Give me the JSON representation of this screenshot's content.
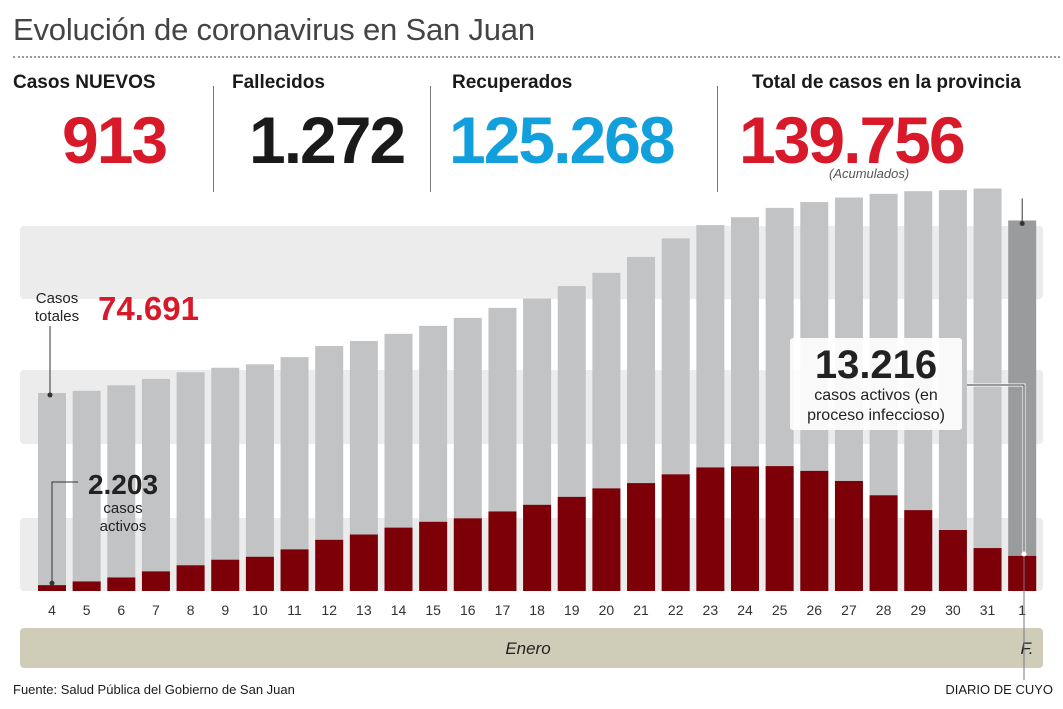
{
  "title": "Evolución de coronavirus en San Juan",
  "stats": [
    {
      "label": "Casos NUEVOS",
      "value": "913",
      "color": "#d7192a"
    },
    {
      "label": "Fallecidos",
      "value": "1.272",
      "color": "#1a1a1a"
    },
    {
      "label": "Recuperados",
      "value": "125.268",
      "color": "#12a0dc"
    },
    {
      "label": "Total de casos en la provincia",
      "value": "139.756",
      "color": "#d7192a"
    }
  ],
  "total_note": "(Acumulados)",
  "annotations": {
    "total_start_label_1": "Casos",
    "total_start_label_2": "totales",
    "total_start_value": "74.691",
    "active_start_value": "2.203",
    "active_start_label_1": "casos",
    "active_start_label_2": "activos",
    "active_end_value": "13.216",
    "active_end_label_1": "casos activos (en",
    "active_end_label_2": "proceso infeccioso)"
  },
  "chart_data": {
    "type": "bar",
    "categories": [
      "4",
      "5",
      "6",
      "7",
      "8",
      "9",
      "10",
      "11",
      "12",
      "13",
      "14",
      "15",
      "16",
      "17",
      "18",
      "19",
      "20",
      "21",
      "22",
      "23",
      "24",
      "25",
      "26",
      "27",
      "28",
      "29",
      "30",
      "31",
      "1"
    ],
    "series": [
      {
        "name": "Casos totales",
        "values": [
          74691,
          75500,
          77600,
          80000,
          82500,
          84200,
          85500,
          88200,
          92400,
          94300,
          97000,
          100000,
          103000,
          106800,
          110300,
          115000,
          120000,
          126000,
          133000,
          138000,
          141000,
          144500,
          146700,
          148400,
          149800,
          150800,
          151200,
          151800,
          139756
        ],
        "color": "#c2c3c5",
        "last_color": "#9a9b9d"
      },
      {
        "name": "casos activos",
        "values": [
          2203,
          3600,
          5100,
          7400,
          9700,
          11800,
          12900,
          15700,
          19300,
          21300,
          23900,
          26100,
          27400,
          30000,
          32500,
          35500,
          38700,
          40700,
          44000,
          46600,
          47000,
          47100,
          45300,
          41500,
          36100,
          30500,
          23000,
          16200,
          13216
        ],
        "color": "#7d0008"
      }
    ],
    "month_label": "Enero",
    "month_label_2": "F.",
    "ylim": [
      0,
      152000
    ]
  },
  "source": "Fuente: Salud Pública del Gobierno de San Juan",
  "brand": "DIARIO DE CUYO"
}
